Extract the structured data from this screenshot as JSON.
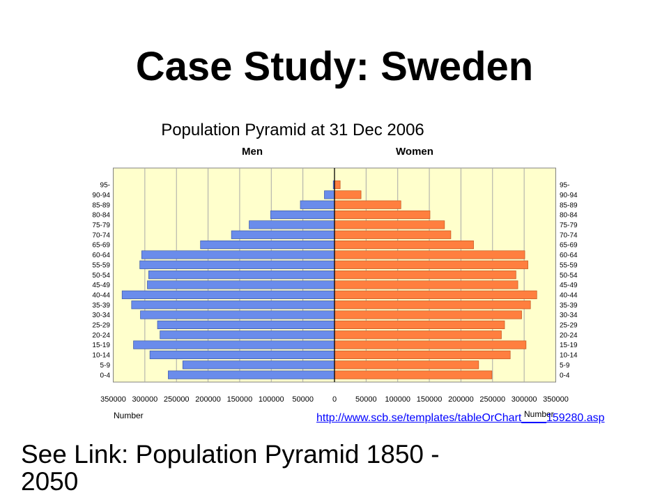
{
  "slide": {
    "title": "Case Study: Sweden",
    "source_link": "http://www.scb.se/templates/tableOrChart____159280.asp",
    "see_link_text": "See Link: Population Pyramid 1850 - 2050",
    "link_color": "#0000FF"
  },
  "chart_data": {
    "type": "bar",
    "title": "Population Pyramid at 31 Dec 2006",
    "xlabel": "Number",
    "categories": [
      "0-4",
      "5-9",
      "10-14",
      "15-19",
      "20-24",
      "25-29",
      "30-34",
      "35-39",
      "40-44",
      "45-49",
      "50-54",
      "55-59",
      "60-64",
      "65-69",
      "70-74",
      "75-79",
      "80-84",
      "85-89",
      "90-94",
      "95-"
    ],
    "series": [
      {
        "name": "Men",
        "color": "#6A8CEB",
        "values": [
          263000,
          240000,
          292000,
          318000,
          276000,
          280000,
          307000,
          321000,
          336000,
          296000,
          294000,
          308000,
          305000,
          212000,
          163000,
          135000,
          101000,
          54000,
          16000,
          2000
        ]
      },
      {
        "name": "Women",
        "color": "#FF7F3F",
        "values": [
          249000,
          228000,
          278000,
          303000,
          264000,
          269000,
          296000,
          310000,
          320000,
          290000,
          287000,
          306000,
          301000,
          220000,
          184000,
          174000,
          151000,
          105000,
          42000,
          9000
        ]
      }
    ],
    "xlim": [
      0,
      350000
    ],
    "x_ticks": [
      0,
      50000,
      100000,
      150000,
      200000,
      250000,
      300000,
      350000
    ],
    "x_tick_labels": [
      "0",
      "50000",
      "100000",
      "150000",
      "200000",
      "250000",
      "300000",
      "350000"
    ],
    "grid": true,
    "plot_background": "#FFFFCC"
  }
}
